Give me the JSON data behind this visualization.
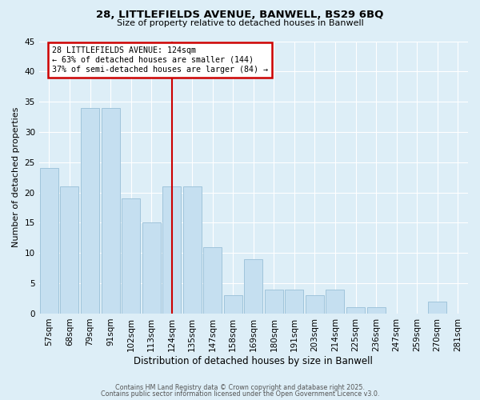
{
  "title": "28, LITTLEFIELDS AVENUE, BANWELL, BS29 6BQ",
  "subtitle": "Size of property relative to detached houses in Banwell",
  "xlabel": "Distribution of detached houses by size in Banwell",
  "ylabel": "Number of detached properties",
  "bar_labels": [
    "57sqm",
    "68sqm",
    "79sqm",
    "91sqm",
    "102sqm",
    "113sqm",
    "124sqm",
    "135sqm",
    "147sqm",
    "158sqm",
    "169sqm",
    "180sqm",
    "191sqm",
    "203sqm",
    "214sqm",
    "225sqm",
    "236sqm",
    "247sqm",
    "259sqm",
    "270sqm",
    "281sqm"
  ],
  "bar_values": [
    24,
    21,
    34,
    34,
    19,
    15,
    21,
    21,
    11,
    3,
    9,
    4,
    4,
    3,
    4,
    1,
    1,
    0,
    0,
    2,
    0
  ],
  "bar_color": "#c5dff0",
  "bar_edge_color": "#a0c4db",
  "vline_x_index": 6,
  "vline_color": "#cc0000",
  "annotation_title": "28 LITTLEFIELDS AVENUE: 124sqm",
  "annotation_line1": "← 63% of detached houses are smaller (144)",
  "annotation_line2": "37% of semi-detached houses are larger (84) →",
  "annotation_box_edge": "#cc0000",
  "ylim": [
    0,
    45
  ],
  "yticks": [
    0,
    5,
    10,
    15,
    20,
    25,
    30,
    35,
    40,
    45
  ],
  "bg_color": "#ddeef7",
  "grid_color": "#ffffff",
  "footer1": "Contains HM Land Registry data © Crown copyright and database right 2025.",
  "footer2": "Contains public sector information licensed under the Open Government Licence v3.0."
}
